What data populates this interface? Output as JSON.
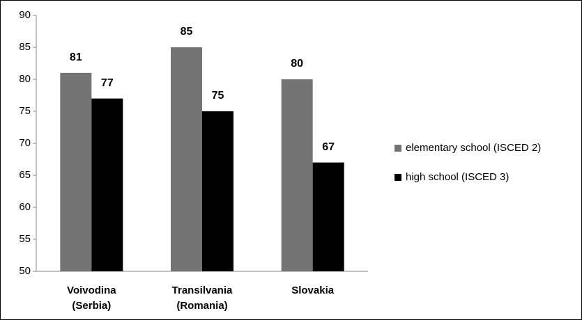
{
  "chart_data": {
    "type": "bar",
    "categories": [
      "Voivodina (Serbia)",
      "Transilvania (Romania)",
      "Slovakia"
    ],
    "series": [
      {
        "name": "elementary school (ISCED 2)",
        "color": "#737373",
        "values": [
          81,
          85,
          80
        ]
      },
      {
        "name": "high school (ISCED 3)",
        "color": "#000000",
        "values": [
          77,
          75,
          67
        ]
      }
    ],
    "ylim": [
      50,
      90
    ],
    "yticks": [
      50,
      55,
      60,
      65,
      70,
      75,
      80,
      85,
      90
    ],
    "grid": false,
    "legend": "right"
  }
}
